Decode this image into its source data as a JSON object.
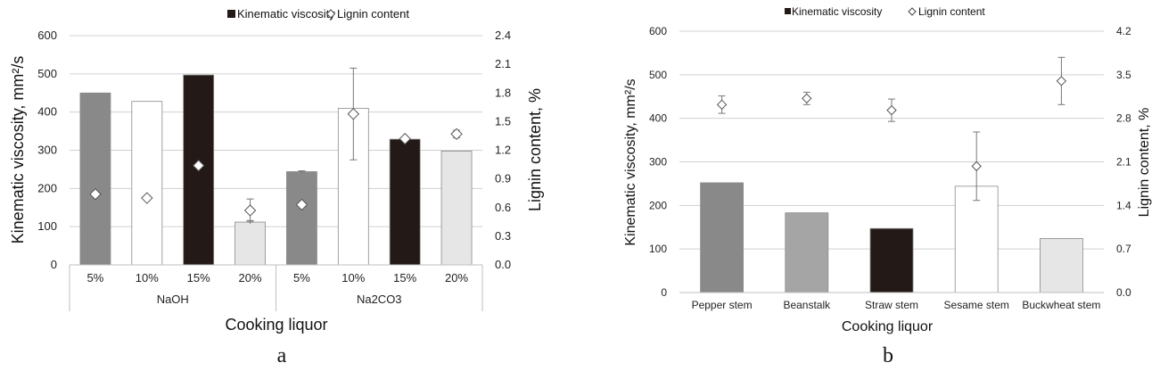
{
  "chart_data": [
    {
      "type": "bar",
      "panel_label": "a",
      "legend": {
        "bar": "Kinematic viscosity",
        "marker": "Lignin content",
        "placement": "top"
      },
      "xlabel": "Cooking liquor",
      "ylabel": "Kinematic viscosity, mm²/s",
      "y2label": "Lignin content, %",
      "ylim": [
        0,
        600
      ],
      "y_ticks": [
        "0",
        "100",
        "200",
        "300",
        "400",
        "500",
        "600"
      ],
      "y2lim": [
        0,
        2.4
      ],
      "y2_ticks": [
        "0.0",
        "0.3",
        "0.6",
        "0.9",
        "1.2",
        "1.5",
        "1.8",
        "2.1",
        "2.4"
      ],
      "groups": [
        "NaOH",
        "Na2CO3"
      ],
      "categories": [
        "5%",
        "10%",
        "15%",
        "20%",
        "5%",
        "10%",
        "15%",
        "20%"
      ],
      "series": [
        {
          "name": "Kinematic viscosity",
          "kind": "bar",
          "values": [
            450,
            428,
            497,
            112,
            244,
            410,
            329,
            298
          ],
          "errors": [
            0,
            0,
            0,
            4,
            2,
            0,
            6,
            0
          ],
          "colors": [
            "#898989",
            "#ffffff",
            "#231916",
            "#e6e6e6",
            "#898989",
            "#ffffff",
            "#231916",
            "#e6e6e6"
          ]
        },
        {
          "name": "Lignin content",
          "kind": "marker",
          "axis": "y2",
          "values": [
            0.74,
            0.7,
            1.04,
            0.57,
            0.63,
            1.58,
            1.32,
            1.37
          ],
          "errors": [
            0,
            0,
            0,
            0.12,
            0,
            0.48,
            0,
            0.04
          ],
          "fills": [
            "#ffffff",
            "#ffffff",
            "#ffffff",
            "#ffffff",
            "#ffffff",
            "#ffffff",
            "#ffffff",
            "#ffffff"
          ]
        }
      ],
      "grid": true
    },
    {
      "type": "bar",
      "panel_label": "b",
      "legend": {
        "bar": "Kinematic viscosity",
        "marker": "Lignin content",
        "placement": "top"
      },
      "xlabel": "Cooking liquor",
      "ylabel": "Kinematic viscosity, mm²/s",
      "y2label": "Lignin content, %",
      "ylim": [
        0,
        600
      ],
      "y_ticks": [
        "0",
        "100",
        "200",
        "300",
        "400",
        "500",
        "600"
      ],
      "y2lim": [
        0,
        4.2
      ],
      "y2_ticks": [
        "0.0",
        "0.7",
        "1.4",
        "2.1",
        "2.8",
        "3.5",
        "4.2"
      ],
      "categories": [
        "Pepper stem",
        "Beanstalk",
        "Straw stem",
        "Sesame stem",
        "Buckwheat stem"
      ],
      "series": [
        {
          "name": "Kinematic viscosity",
          "kind": "bar",
          "values": [
            252,
            183,
            147,
            244,
            124
          ],
          "errors": [
            0,
            0,
            0,
            0,
            0
          ],
          "colors": [
            "#898989",
            "#a5a5a5",
            "#231916",
            "#ffffff",
            "#e6e6e6"
          ]
        },
        {
          "name": "Lignin content",
          "kind": "marker",
          "axis": "y2",
          "values": [
            3.02,
            3.12,
            2.93,
            2.03,
            3.4
          ],
          "errors": [
            0.14,
            0.1,
            0.18,
            0.55,
            0.38
          ]
        }
      ],
      "grid": true
    }
  ]
}
